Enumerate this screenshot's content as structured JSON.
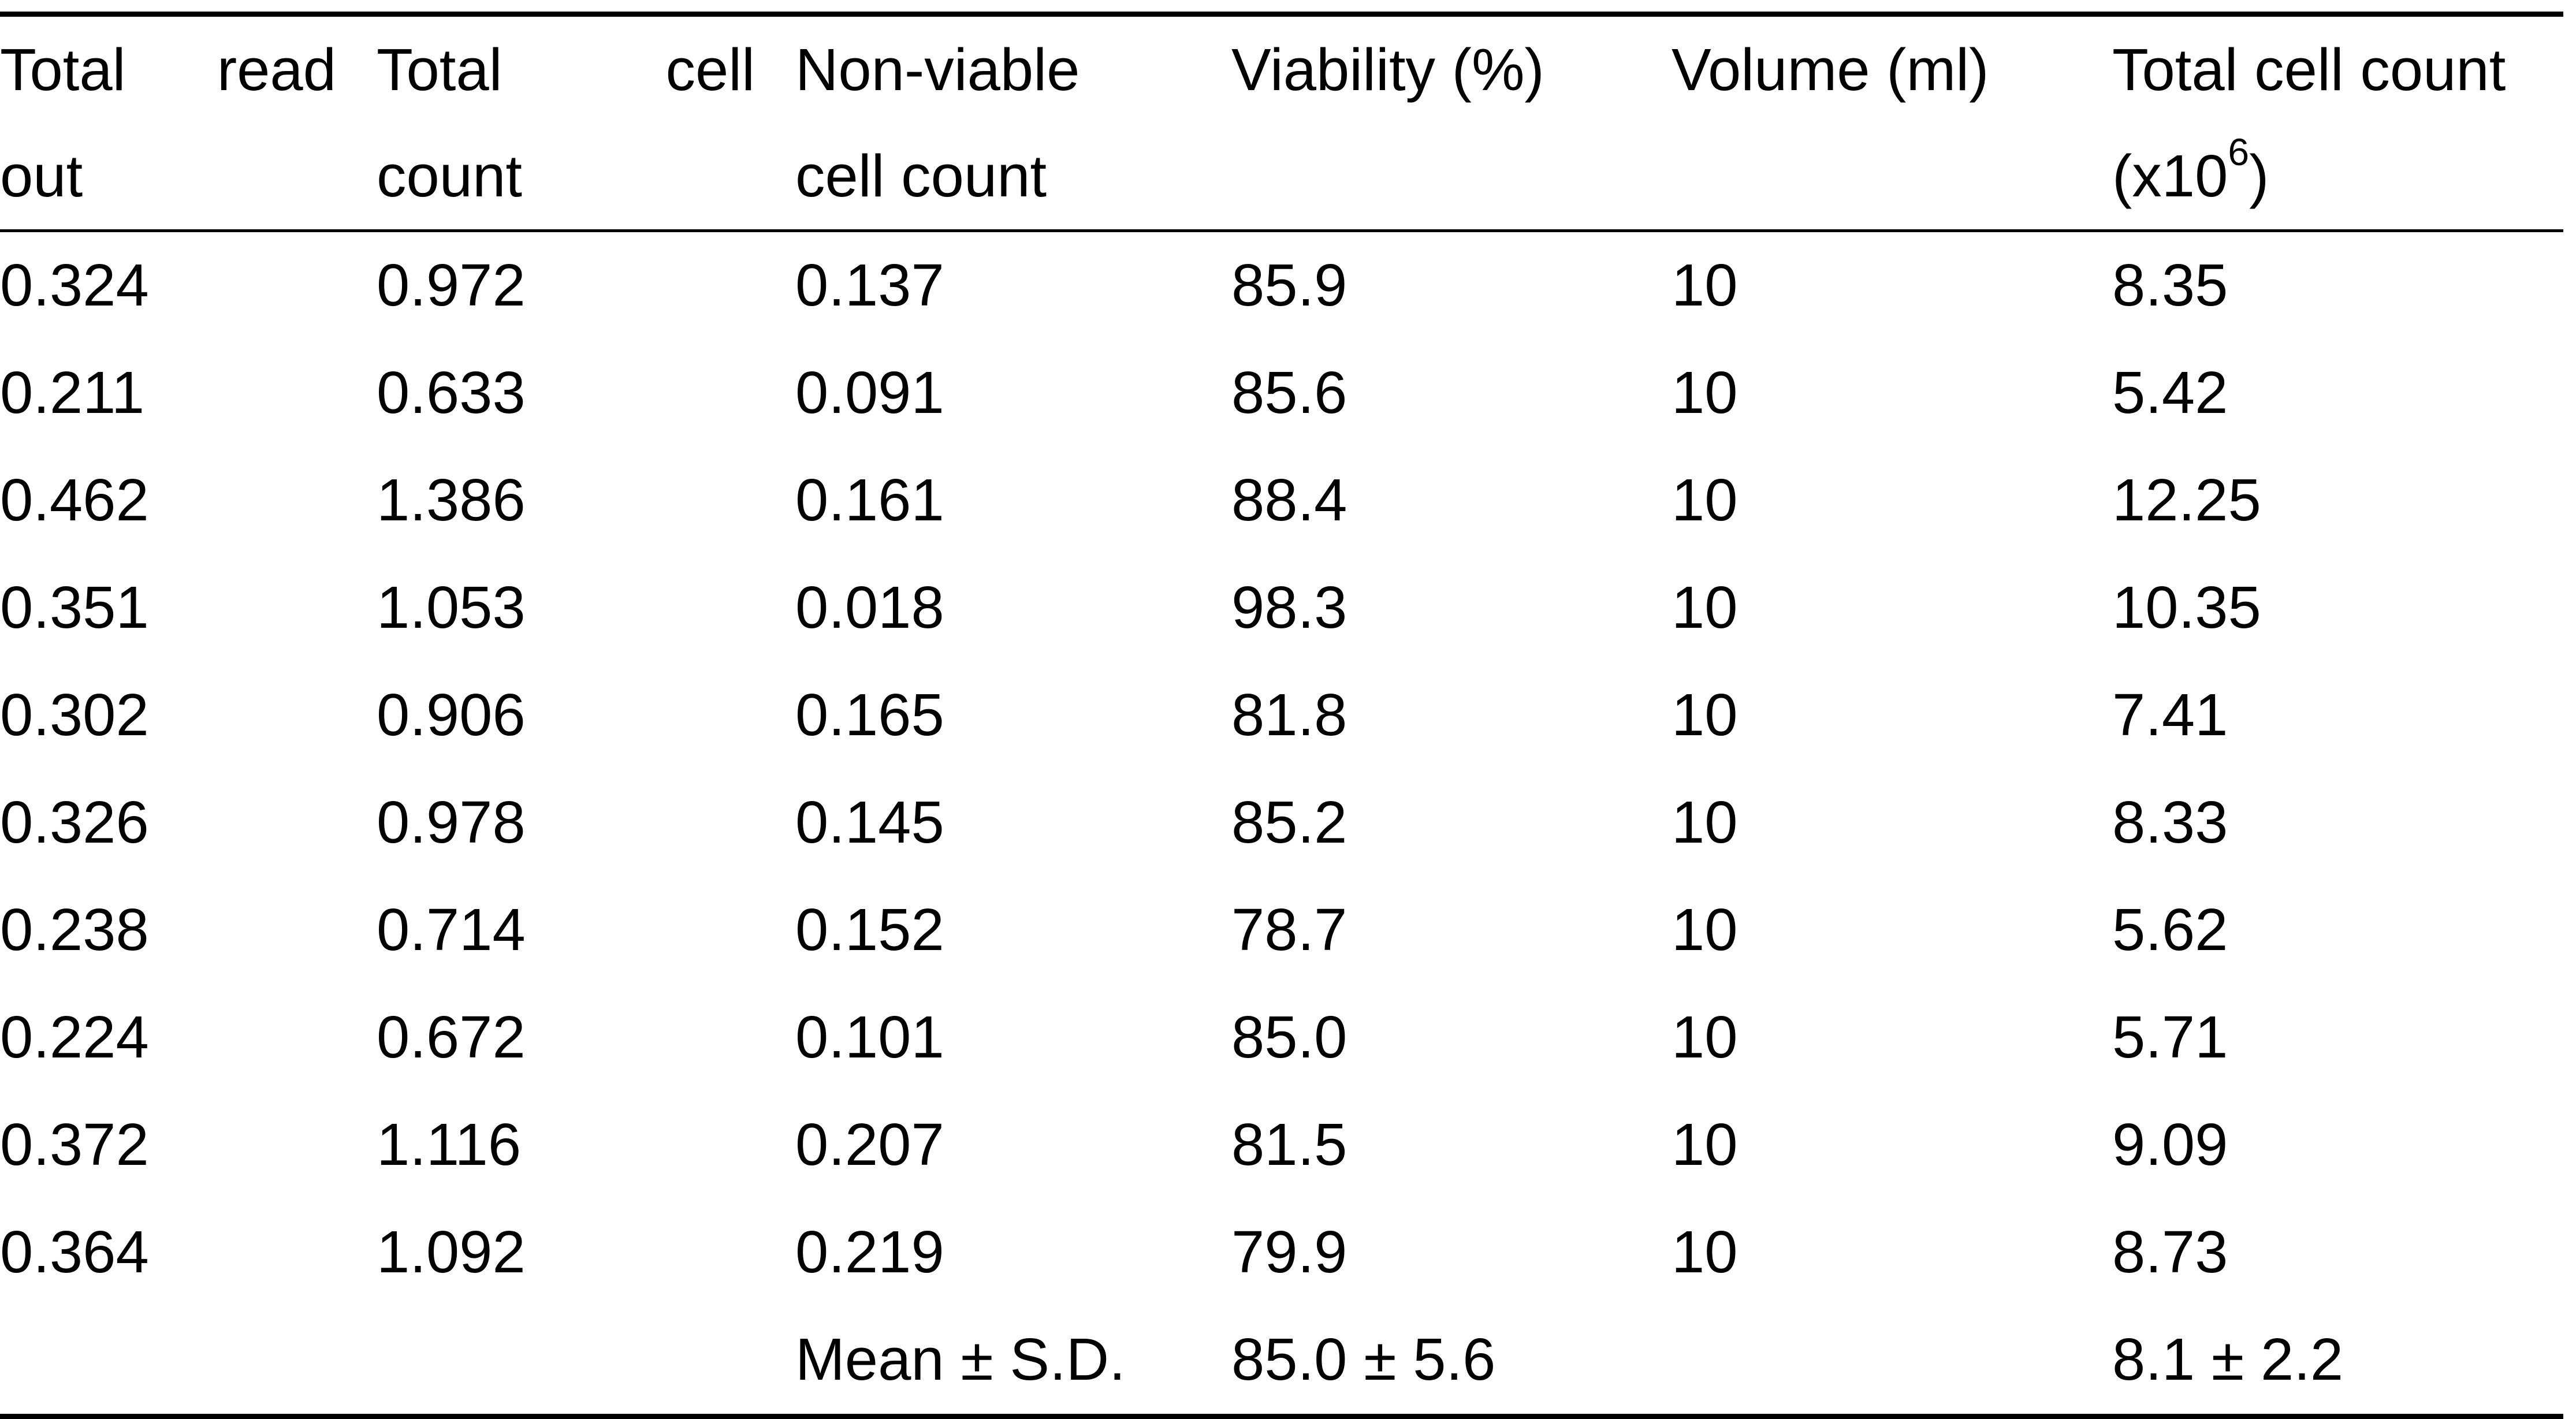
{
  "table": {
    "headers": [
      [
        "Total read",
        "out"
      ],
      [
        "Total cell",
        "count"
      ],
      [
        "Non-viable",
        "cell count"
      ],
      [
        "Viability (%)",
        ""
      ],
      [
        "Volume (ml)",
        ""
      ],
      [
        "Total cell count",
        "(x10",
        "6",
        ")"
      ]
    ],
    "rows": [
      [
        "0.324",
        "0.972",
        "0.137",
        "85.9",
        "10",
        "8.35"
      ],
      [
        "0.211",
        "0.633",
        "0.091",
        "85.6",
        "10",
        "5.42"
      ],
      [
        "0.462",
        "1.386",
        "0.161",
        "88.4",
        "10",
        "12.25"
      ],
      [
        "0.351",
        "1.053",
        "0.018",
        "98.3",
        "10",
        "10.35"
      ],
      [
        "0.302",
        "0.906",
        "0.165",
        "81.8",
        "10",
        "7.41"
      ],
      [
        "0.326",
        "0.978",
        "0.145",
        "85.2",
        "10",
        "8.33"
      ],
      [
        "0.238",
        "0.714",
        "0.152",
        "78.7",
        "10",
        "5.62"
      ],
      [
        "0.224",
        "0.672",
        "0.101",
        "85.0",
        "10",
        "5.71"
      ],
      [
        "0.372",
        "1.116",
        "0.207",
        "81.5",
        "10",
        "9.09"
      ],
      [
        "0.364",
        "1.092",
        "0.219",
        "79.9",
        "10",
        "8.73"
      ]
    ],
    "summary": [
      "",
      "",
      "Mean ± S.D.",
      "85.0 ± 5.6",
      "",
      "8.1 ± 2.2"
    ]
  }
}
